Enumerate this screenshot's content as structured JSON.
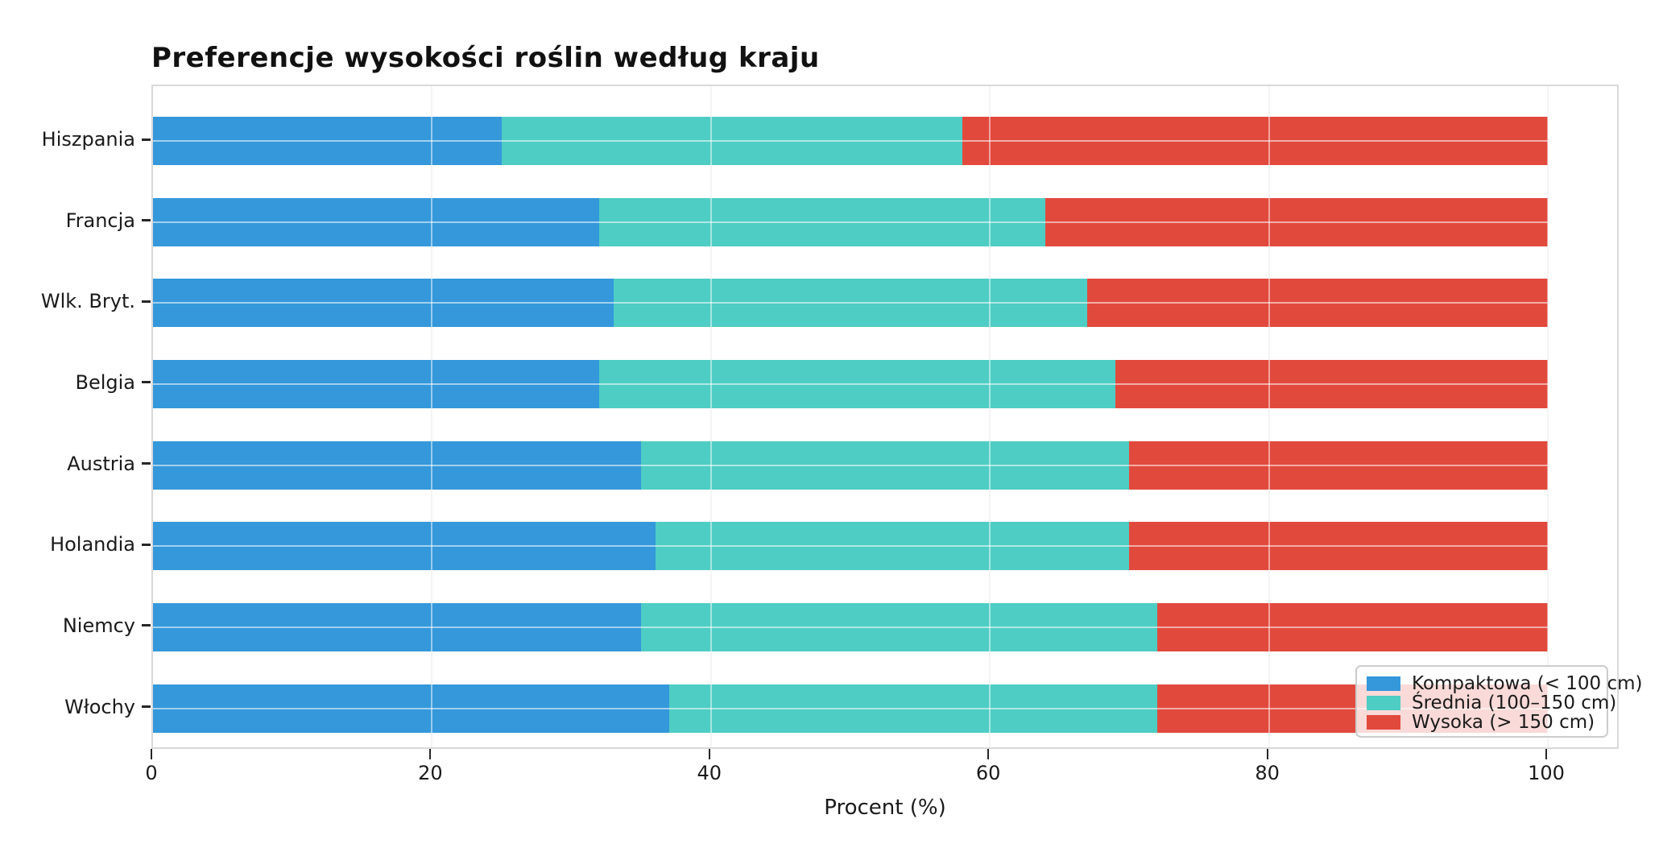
{
  "figure": {
    "background": "#ffffff",
    "plot_border_color": "#d9d9d9",
    "grid_color": "#e9e9e9",
    "text_color": "#1a1a1a"
  },
  "chart_data": {
    "type": "bar",
    "orientation": "horizontal",
    "stacked": true,
    "title": "Preferencje wysokości roślin według kraju",
    "xlabel": "Procent (%)",
    "ylabel": "",
    "xlim": [
      0,
      105
    ],
    "x_ticks": [
      0,
      20,
      40,
      60,
      80,
      100
    ],
    "grid": true,
    "legend_position": "lower right",
    "categories": [
      "Hiszpania",
      "Francja",
      "Wlk. Bryt.",
      "Belgia",
      "Austria",
      "Holandia",
      "Niemcy",
      "Włochy"
    ],
    "series": [
      {
        "name": "Kompaktowa (< 100 cm)",
        "color": "#3498db",
        "values": [
          25,
          32,
          33,
          32,
          35,
          36,
          35,
          37
        ]
      },
      {
        "name": "Średnia (100–150 cm)",
        "color": "#4ecdc4",
        "values": [
          33,
          32,
          34,
          37,
          35,
          34,
          37,
          35
        ]
      },
      {
        "name": "Wysoka (> 150 cm)",
        "color": "#e2493d",
        "values": [
          42,
          36,
          33,
          31,
          30,
          30,
          28,
          28
        ]
      }
    ]
  }
}
